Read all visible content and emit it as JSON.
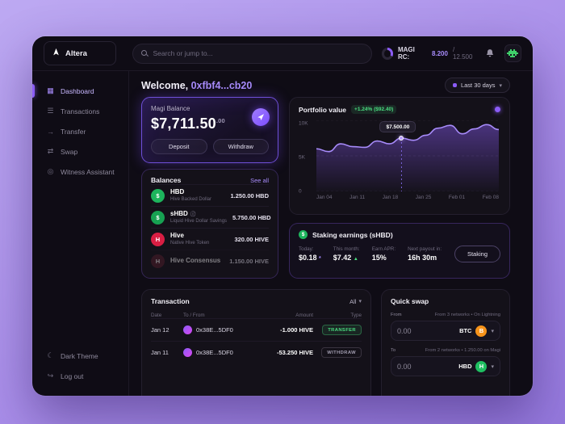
{
  "icons": {
    "chevron_down": "▾",
    "info": "ⓘ",
    "up_triangle": "▲",
    "asterisk": "*"
  },
  "topbar": {
    "logo": "Altera",
    "search_placeholder": "Search or jump to...",
    "magi_rc_label": "MAGI RC:",
    "magi_rc_used": "8.200",
    "magi_rc_total": "/ 12.500"
  },
  "sidebar": {
    "items": [
      {
        "label": "Dashboard",
        "icon": "▦"
      },
      {
        "label": "Transactions",
        "icon": "☰"
      },
      {
        "label": "Transfer",
        "icon": "→"
      },
      {
        "label": "Swap",
        "icon": "⇄"
      },
      {
        "label": "Witness Assistant",
        "icon": "◎"
      }
    ],
    "theme_label": "Dark Theme",
    "theme_icon": "☾",
    "logout_label": "Log out",
    "logout_icon": "↪"
  },
  "header": {
    "welcome": "Welcome,",
    "wallet": "0xfbf4...cb20",
    "range": "Last 30 days"
  },
  "magi": {
    "title": "Magi Balance",
    "amount": "$7,711.50",
    "cents": ".00",
    "deposit": "Deposit",
    "withdraw": "Withdraw"
  },
  "balances": {
    "title": "Balances",
    "see_all": "See all",
    "items": [
      {
        "name": "HBD",
        "subtitle": "Hive Backed Dollar",
        "value": "1.250.00 HBD",
        "symbol": "$"
      },
      {
        "name": "sHBD",
        "subtitle": "Liquid Hive Dollar Savings",
        "value": "5.750.00 HBD",
        "symbol": "$"
      },
      {
        "name": "Hive",
        "subtitle": "Native Hive Token",
        "value": "320.00 HIVE",
        "symbol": "H"
      },
      {
        "name": "Hive Consensus",
        "subtitle": "",
        "value": "1.150.00 HIVE",
        "symbol": "H"
      }
    ]
  },
  "portfolio": {
    "title": "Portfolio value",
    "change": "+1.24% ($92.40)",
    "tooltip": "$7.500.00",
    "chart_data": {
      "type": "area",
      "x_labels": [
        "Jan 04",
        "Jan 11",
        "Jan 18",
        "Jan 25",
        "Feb 01",
        "Feb 08"
      ],
      "values": [
        6000,
        5600,
        6700,
        6300,
        6200,
        7100,
        6700,
        7500,
        7200,
        7900,
        8900,
        9300,
        8100,
        8800,
        9400,
        8700
      ],
      "ylim": [
        0,
        10000
      ],
      "yticks": [
        "10K",
        "5K",
        "0"
      ],
      "marker_index": 7,
      "marker_label": "$7.500.00",
      "line_color": "#a78bfa"
    }
  },
  "staking": {
    "title": "Staking earnings (sHBD)",
    "stats": [
      {
        "label": "Today:",
        "value": "$0.18"
      },
      {
        "label": "This month:",
        "value": "$7.42"
      },
      {
        "label": "Earn APR:",
        "value": "15%"
      },
      {
        "label": "Next payout in:",
        "value": "16h 30m"
      }
    ],
    "button": "Staking"
  },
  "transactions": {
    "title": "Transaction",
    "filter": "All",
    "columns": [
      "Date",
      "To / From",
      "Amount",
      "Type"
    ],
    "rows": [
      {
        "date": "Jan 12",
        "address": "0x38E...5DF0",
        "amount": "-1.000 HIVE",
        "type": "TRANSFER"
      },
      {
        "date": "Jan 11",
        "address": "0x38E...5DF0",
        "amount": "-53.250 HIVE",
        "type": "WITHDRAW"
      }
    ]
  },
  "quick_swap": {
    "title": "Quick swap",
    "from_label": "From",
    "from_networks": "From 3 networks",
    "from_note": "• On Lightning",
    "from_value": "0.00",
    "from_currency": "BTC",
    "from_symbol": "B",
    "to_label": "To",
    "to_networks": "From 2 networks",
    "to_note": "• 1.250.00 on Magi",
    "to_value": "0.00",
    "to_currency": "HBD",
    "to_symbol": "H"
  }
}
